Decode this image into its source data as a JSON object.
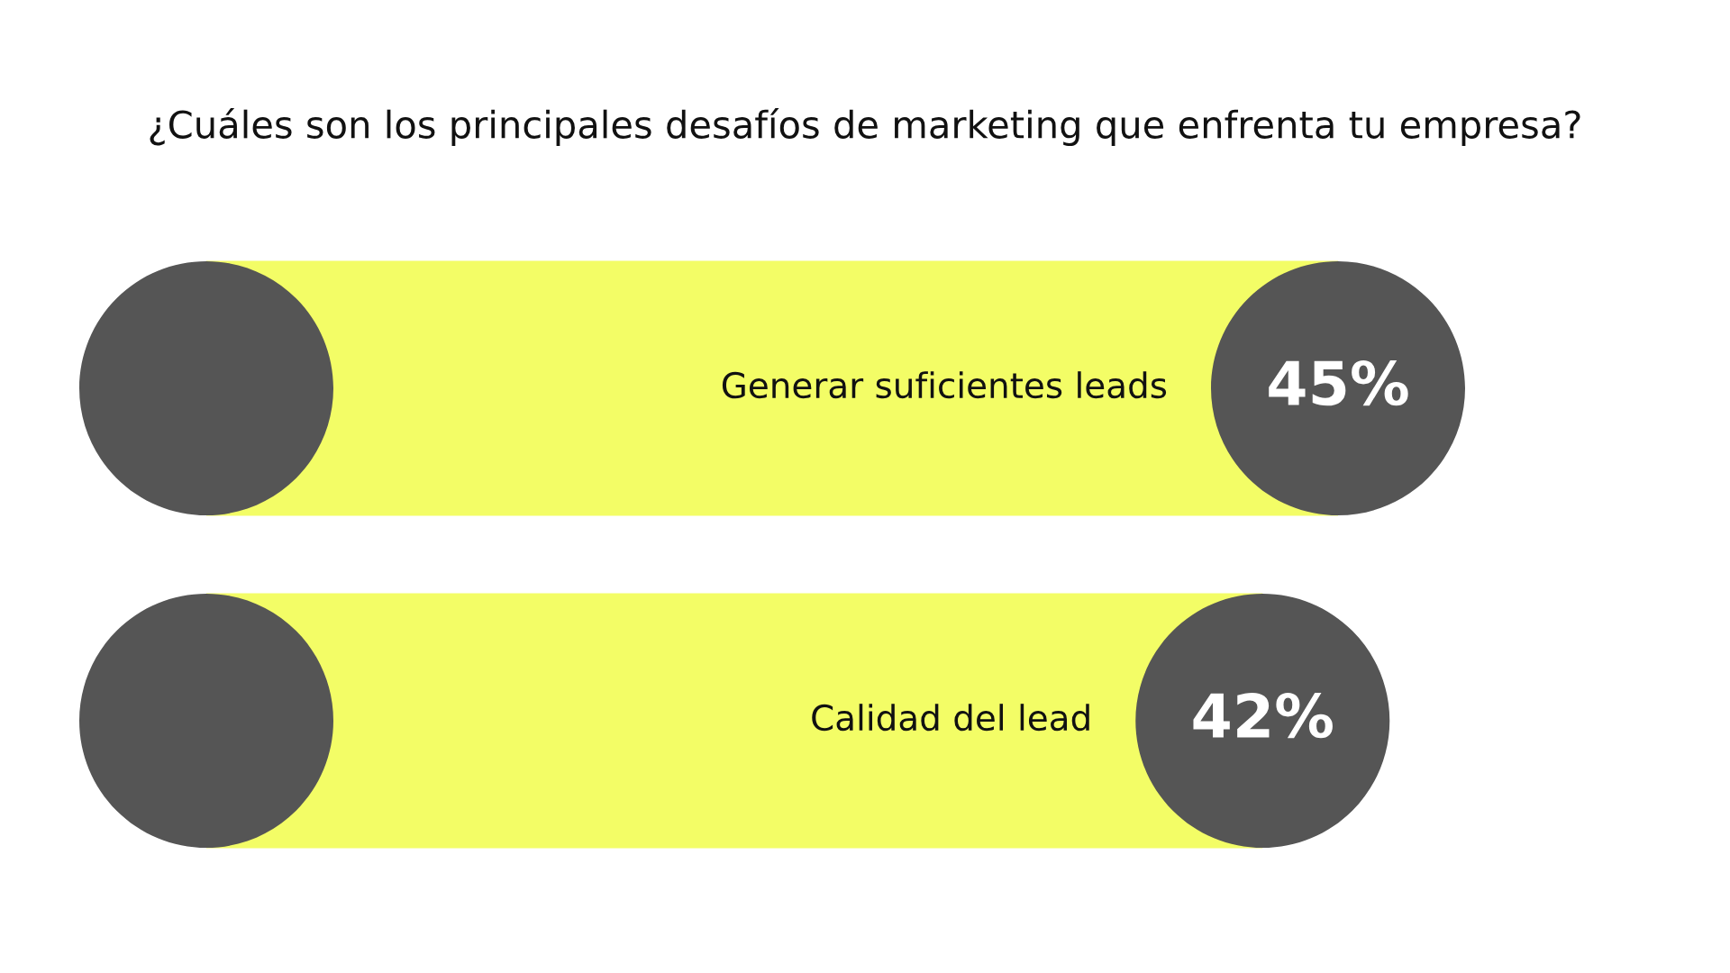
{
  "chart_data": {
    "type": "bar",
    "orientation": "horizontal",
    "title": "¿Cuáles son los principales desafíos de marketing que enfrenta tu empresa?",
    "categories": [
      "Generar suficientes leads",
      "Calidad del lead"
    ],
    "values": [
      45,
      42
    ],
    "value_labels": [
      "45%",
      "42%"
    ],
    "color": "#f3fd66"
  }
}
